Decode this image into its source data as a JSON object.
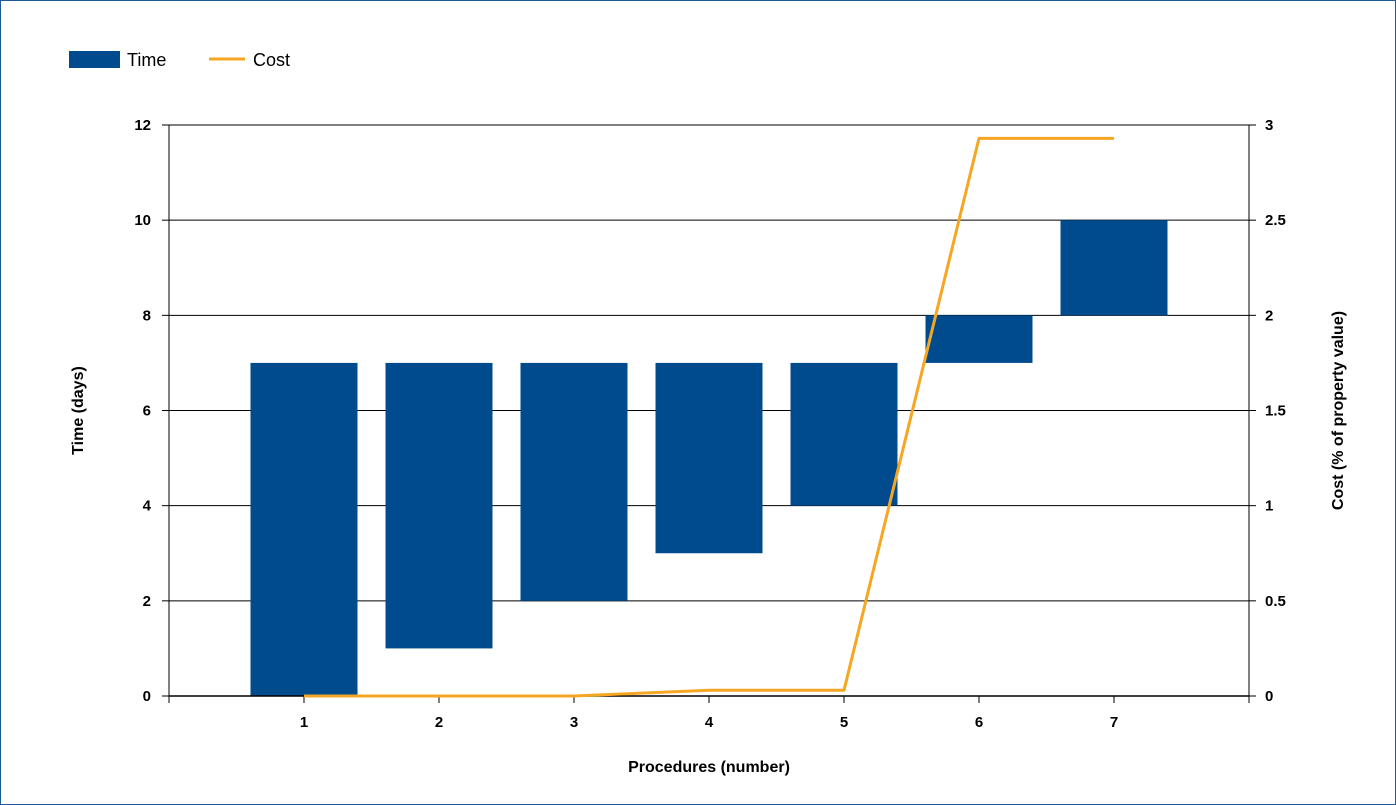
{
  "chart_data": {
    "type": "bar",
    "subtype": "floating-bar-with-line",
    "title": "",
    "xlabel": "Procedures (number)",
    "ylabel": "Time (days)",
    "y2label": "Cost (% of property value)",
    "categories": [
      "1",
      "2",
      "3",
      "4",
      "5",
      "6",
      "7"
    ],
    "ylim": [
      0,
      12
    ],
    "yticks": [
      0,
      2,
      4,
      6,
      8,
      10,
      12
    ],
    "y2lim": [
      0,
      3
    ],
    "y2ticks": [
      "0",
      "0.5",
      "1",
      "1.5",
      "2",
      "2.5",
      "3"
    ],
    "grid": true,
    "legend_position": "top-left",
    "series": [
      {
        "name": "Time",
        "kind": "floating-bar",
        "axis": "left",
        "color": "#004b8d",
        "start": [
          0,
          1,
          2,
          3,
          4,
          7,
          8
        ],
        "end": [
          7,
          7,
          7,
          7,
          7,
          8,
          10
        ]
      },
      {
        "name": "Cost",
        "kind": "line",
        "axis": "right",
        "color": "#f5a623",
        "values": [
          0,
          0,
          0,
          0.03,
          0.03,
          2.93,
          2.93
        ]
      }
    ]
  }
}
